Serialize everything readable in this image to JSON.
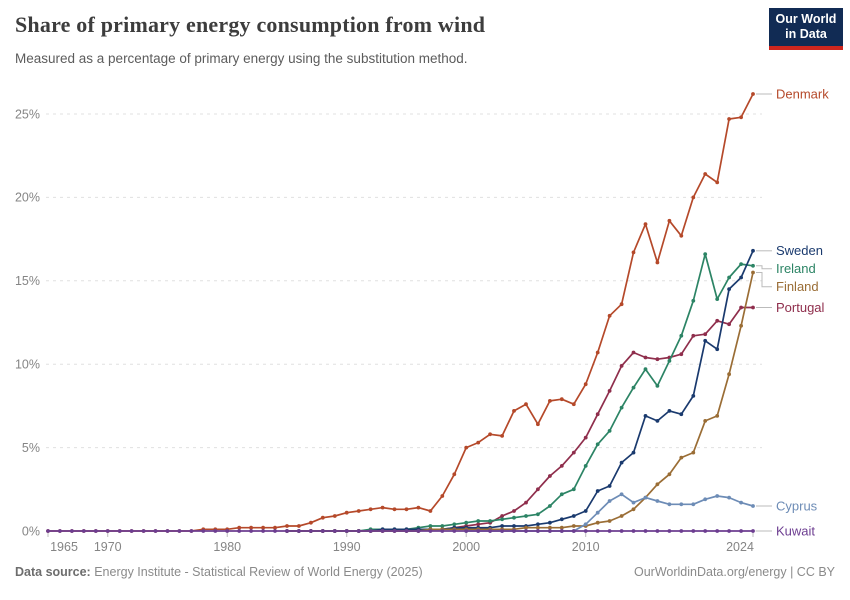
{
  "header": {
    "title": "Share of primary energy consumption from wind",
    "subtitle": "Measured as a percentage of primary energy using the substitution method."
  },
  "logo": {
    "line1": "Our World",
    "line2": "in Data",
    "bg_color": "#112b54",
    "stripe_color": "#ce261e"
  },
  "footer": {
    "datasource_label": "Data source:",
    "datasource_text": "Energy Institute - Statistical Review of World Energy (2025)",
    "credit": "OurWorldinData.org/energy | CC BY"
  },
  "chart_data": {
    "type": "line",
    "title": "Share of primary energy consumption from wind",
    "subtitle": "Measured as a percentage of primary energy using the substitution method.",
    "xlabel": "",
    "ylabel": "",
    "x_range": [
      1965,
      2024
    ],
    "y_grid_max": 25,
    "grid": true,
    "grid_color": "#e0e0e0",
    "tick_color": "#bdbdbd",
    "axis_text_color": "#858585",
    "connector_color": "#bbbbbb",
    "legend_position": "right-end-labels",
    "x_ticks": [
      {
        "year": 1965,
        "label": "1965"
      },
      {
        "year": 1970,
        "label": "1970"
      },
      {
        "year": 1980,
        "label": "1980"
      },
      {
        "year": 1990,
        "label": "1990"
      },
      {
        "year": 2000,
        "label": "2000"
      },
      {
        "year": 2010,
        "label": "2010"
      },
      {
        "year": 2024,
        "label": "2024"
      }
    ],
    "y_ticks": [
      {
        "value": 0,
        "label": "0%"
      },
      {
        "value": 5,
        "label": "5%"
      },
      {
        "value": 10,
        "label": "10%"
      },
      {
        "value": 15,
        "label": "15%"
      },
      {
        "value": 20,
        "label": "20%"
      },
      {
        "value": 25,
        "label": "25%"
      }
    ],
    "series": [
      {
        "name": "Denmark",
        "color": "#b5492a",
        "start_year": 1965,
        "values": [
          0,
          0,
          0,
          0,
          0,
          0,
          0,
          0,
          0,
          0,
          0,
          0,
          0,
          0.1,
          0.1,
          0.1,
          0.2,
          0.2,
          0.2,
          0.2,
          0.3,
          0.3,
          0.5,
          0.8,
          0.9,
          1.1,
          1.2,
          1.3,
          1.4,
          1.3,
          1.3,
          1.4,
          1.2,
          2.1,
          3.4,
          5.0,
          5.3,
          5.8,
          5.7,
          7.2,
          7.6,
          6.4,
          7.8,
          7.9,
          7.6,
          8.8,
          10.7,
          12.9,
          13.6,
          16.7,
          18.4,
          16.1,
          18.6,
          17.7,
          20.0,
          21.4,
          20.9,
          24.7,
          24.8,
          26.2
        ]
      },
      {
        "name": "Portugal",
        "color": "#8f2e4c",
        "start_year": 1985,
        "values": [
          0,
          0,
          0,
          0,
          0,
          0,
          0,
          0,
          0,
          0,
          0,
          0,
          0.1,
          0.1,
          0.2,
          0.3,
          0.4,
          0.5,
          0.9,
          1.2,
          1.7,
          2.5,
          3.3,
          3.9,
          4.7,
          5.6,
          7.0,
          8.4,
          9.9,
          10.7,
          10.4,
          10.3,
          10.4,
          10.6,
          11.7,
          11.8,
          12.6,
          12.4,
          13.4,
          13.4
        ]
      },
      {
        "name": "Ireland",
        "color": "#2c8465",
        "start_year": 1985,
        "values": [
          0,
          0,
          0,
          0,
          0,
          0,
          0,
          0.1,
          0.1,
          0.1,
          0.1,
          0.2,
          0.3,
          0.3,
          0.4,
          0.5,
          0.6,
          0.6,
          0.7,
          0.8,
          0.9,
          1.0,
          1.5,
          2.2,
          2.5,
          3.9,
          5.2,
          6.0,
          7.4,
          8.6,
          9.7,
          8.7,
          10.2,
          11.7,
          13.8,
          16.6,
          13.9,
          15.2,
          16.0,
          15.9
        ]
      },
      {
        "name": "Sweden",
        "color": "#1a3a6e",
        "start_year": 1985,
        "values": [
          0,
          0,
          0,
          0,
          0,
          0,
          0,
          0,
          0.1,
          0.1,
          0.1,
          0.1,
          0.1,
          0.1,
          0.2,
          0.2,
          0.2,
          0.2,
          0.3,
          0.3,
          0.3,
          0.4,
          0.5,
          0.7,
          0.9,
          1.2,
          2.4,
          2.7,
          4.1,
          4.7,
          6.9,
          6.6,
          7.2,
          7.0,
          8.1,
          11.4,
          10.9,
          14.5,
          15.2,
          16.8
        ]
      },
      {
        "name": "Finland",
        "color": "#9a6d35",
        "start_year": 1985,
        "values": [
          0,
          0,
          0,
          0,
          0,
          0,
          0,
          0,
          0,
          0,
          0,
          0,
          0.1,
          0.1,
          0.1,
          0.1,
          0.1,
          0.1,
          0.1,
          0.1,
          0.2,
          0.2,
          0.2,
          0.2,
          0.3,
          0.3,
          0.5,
          0.6,
          0.9,
          1.3,
          2.0,
          2.8,
          3.4,
          4.4,
          4.7,
          6.6,
          6.9,
          9.4,
          12.3,
          15.5
        ]
      },
      {
        "name": "Cyprus",
        "color": "#6d8cb6",
        "start_year": 2000,
        "values": [
          0,
          0,
          0,
          0,
          0,
          0,
          0,
          0,
          0,
          0,
          0.4,
          1.1,
          1.8,
          2.2,
          1.7,
          2.0,
          1.8,
          1.6,
          1.6,
          1.6,
          1.9,
          2.1,
          2.0,
          1.7,
          1.5
        ]
      },
      {
        "name": "Kuwait",
        "color": "#6d3e91",
        "start_year": 1965,
        "values": [
          0,
          0,
          0,
          0,
          0,
          0,
          0,
          0,
          0,
          0,
          0,
          0,
          0,
          0,
          0,
          0,
          0,
          0,
          0,
          0,
          0,
          0,
          0,
          0,
          0,
          0,
          0,
          0,
          0,
          0,
          0,
          0,
          0,
          0,
          0,
          0,
          0,
          0,
          0,
          0,
          0,
          0,
          0,
          0,
          0,
          0,
          0,
          0,
          0,
          0,
          0,
          0,
          0,
          0,
          0,
          0,
          0,
          0,
          0,
          0
        ]
      }
    ]
  }
}
